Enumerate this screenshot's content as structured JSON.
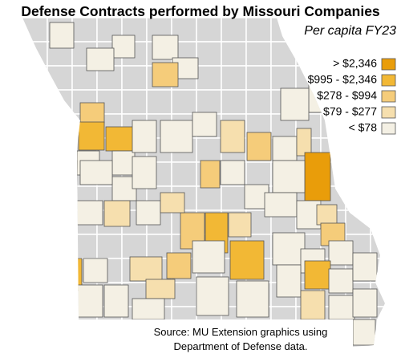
{
  "title": "Defense Contracts performed by Missouri Companies",
  "subtitle": "Per capita FY23",
  "legend": [
    {
      "label": "> $2,346",
      "color": "#e99d0a"
    },
    {
      "label": "$995 - $2,346",
      "color": "#f2b835"
    },
    {
      "label": "$278 - $994",
      "color": "#f5cc7a"
    },
    {
      "label": "$79 - $277",
      "color": "#f6dfae"
    },
    {
      "label": "< $78",
      "color": "#f4f0e4"
    }
  ],
  "source": [
    "Source: MU Extension graphics using",
    "Department of Defense data."
  ]
}
